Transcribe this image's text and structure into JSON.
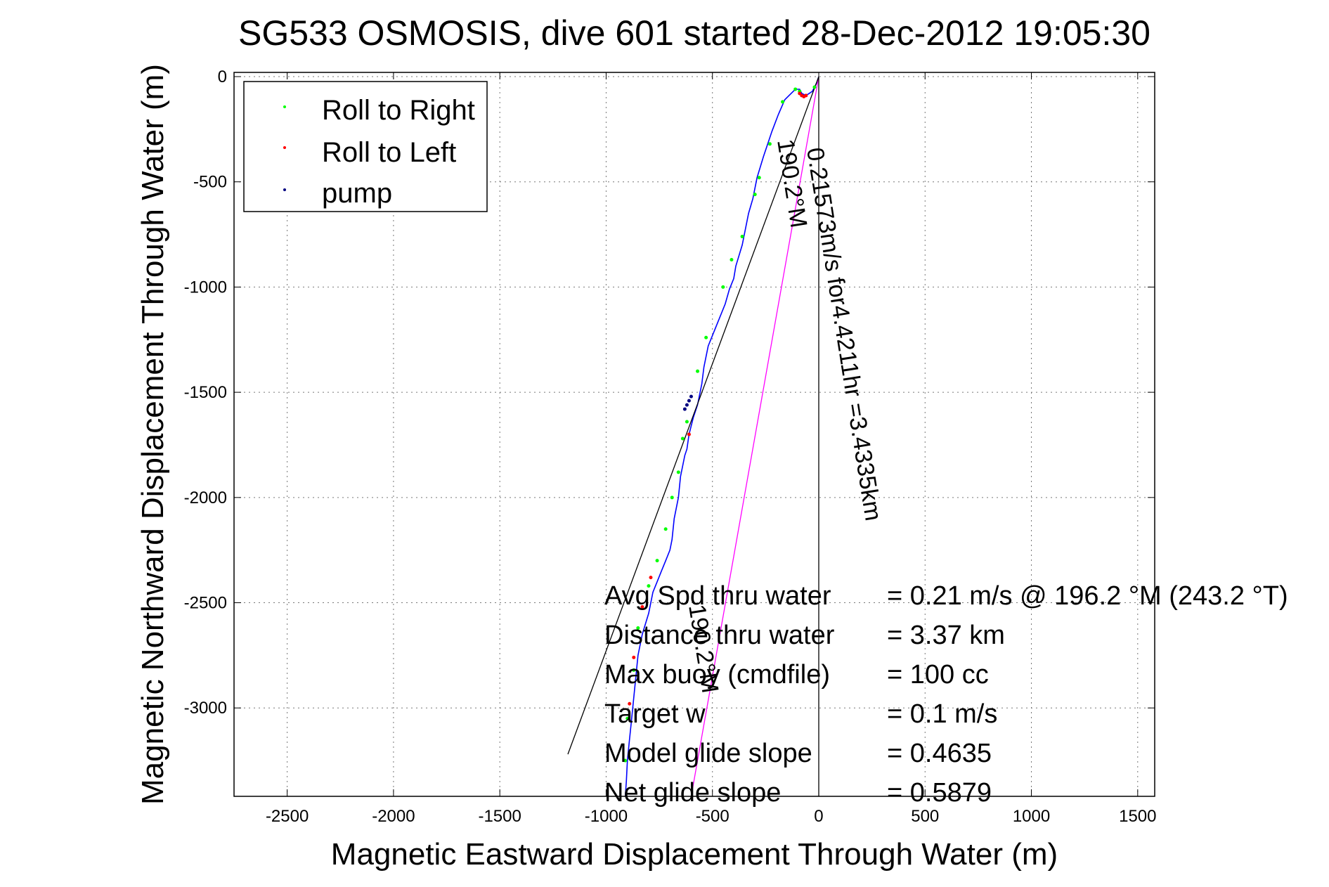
{
  "chart_data": {
    "type": "line",
    "title": "SG533 OSMOSIS, dive 601 started 28-Dec-2012 19:05:30",
    "xlabel": "Magnetic Eastward Displacement Through Water (m)",
    "ylabel": "Magnetic Northward Displacement Through Water (m)",
    "xlim": [
      -2750,
      1580
    ],
    "ylim": [
      -3420,
      20
    ],
    "xticks": [
      -2500,
      -2000,
      -1500,
      -1000,
      -500,
      0,
      500,
      1000,
      1500
    ],
    "yticks": [
      0,
      -500,
      -1000,
      -1500,
      -2000,
      -2500,
      -3000
    ],
    "grid": true,
    "legend": {
      "position": "top-left",
      "entries": [
        {
          "label": "Roll to Right",
          "color": "#00ff00"
        },
        {
          "label": "Roll to Left",
          "color": "#ff0000"
        },
        {
          "label": "pump",
          "color": "#000080"
        }
      ]
    },
    "series": [
      {
        "kind": "track",
        "color": "#0000ff",
        "x": [
          0,
          -10,
          -30,
          -60,
          -80,
          -90,
          -110,
          -130,
          -160,
          -190,
          -220,
          -260,
          -290,
          -310,
          -330,
          -360,
          -390,
          -400,
          -420,
          -440,
          -480,
          -520,
          -540,
          -550,
          -570,
          -590,
          -610,
          -620,
          -630,
          -650,
          -660,
          -680,
          -690,
          -700,
          -720,
          -740,
          -760,
          -780,
          -800,
          -830,
          -850,
          -860,
          -870,
          -880,
          -890,
          -900,
          -905,
          -910
        ],
        "y": [
          0,
          -30,
          -70,
          -90,
          -80,
          -60,
          -60,
          -80,
          -110,
          -180,
          -260,
          -380,
          -480,
          -580,
          -650,
          -800,
          -900,
          -960,
          -1010,
          -1080,
          -1180,
          -1280,
          -1380,
          -1460,
          -1560,
          -1620,
          -1700,
          -1770,
          -1800,
          -1900,
          -2000,
          -2100,
          -2200,
          -2250,
          -2300,
          -2350,
          -2400,
          -2450,
          -2550,
          -2650,
          -2750,
          -2850,
          -2950,
          -3050,
          -3150,
          -3250,
          -3350,
          -3420
        ]
      },
      {
        "kind": "magenta-line",
        "color": "#ff00ff",
        "x": [
          0,
          -600
        ],
        "y": [
          0,
          -3420
        ]
      },
      {
        "kind": "black-line",
        "color": "#000000",
        "x": [
          0,
          -1180
        ],
        "y": [
          0,
          -3220
        ]
      },
      {
        "kind": "vertical-line",
        "color": "#000000",
        "x": [
          0,
          0
        ],
        "y": [
          0,
          -3420
        ]
      }
    ],
    "markers": {
      "roll_right": {
        "color": "#00ff00",
        "x": [
          -20,
          -90,
          -110,
          -170,
          -230,
          -280,
          -300,
          -360,
          -410,
          -450,
          -530,
          -570,
          -620,
          -640,
          -660,
          -690,
          -720,
          -760,
          -800,
          -850,
          -870,
          -900,
          -910
        ],
        "y": [
          -50,
          -70,
          -60,
          -120,
          -320,
          -480,
          -560,
          -760,
          -870,
          -1000,
          -1240,
          -1400,
          -1640,
          -1720,
          -1880,
          -2000,
          -2150,
          -2300,
          -2420,
          -2620,
          -2820,
          -3050,
          -3250
        ]
      },
      "roll_left": {
        "color": "#ff0000",
        "x": [
          -60,
          -70,
          -80,
          -90,
          -610,
          -790,
          -830,
          -870,
          -890
        ],
        "y": [
          -90,
          -95,
          -90,
          -80,
          -1700,
          -2380,
          -2520,
          -2760,
          -2980
        ]
      },
      "pump": {
        "color": "#000080",
        "x": [
          -600,
          -610,
          -620,
          -630
        ],
        "y": [
          -1520,
          -1540,
          -1560,
          -1580
        ]
      }
    },
    "annotations": {
      "rotated_line_text_1": "0.21573m/s for4.4211hr =3.4335km",
      "rotated_line_text_2": "190.2°M",
      "rotated_line_text_3": "190.2°M",
      "stats": [
        {
          "label": "Avg Spd thru water",
          "value": "=  0.21 m/s @ 196.2 °M (243.2 °T)"
        },
        {
          "label": "Distance thru water",
          "value": "=  3.37 km"
        },
        {
          "label": "Max buoy (cmdfile)",
          "value": "= 100 cc"
        },
        {
          "label": "Target w",
          "value": "= 0.1 m/s"
        },
        {
          "label": "Model glide slope",
          "value": "= 0.4635"
        },
        {
          "label": "Net glide slope",
          "value": "= 0.5879"
        }
      ]
    }
  }
}
